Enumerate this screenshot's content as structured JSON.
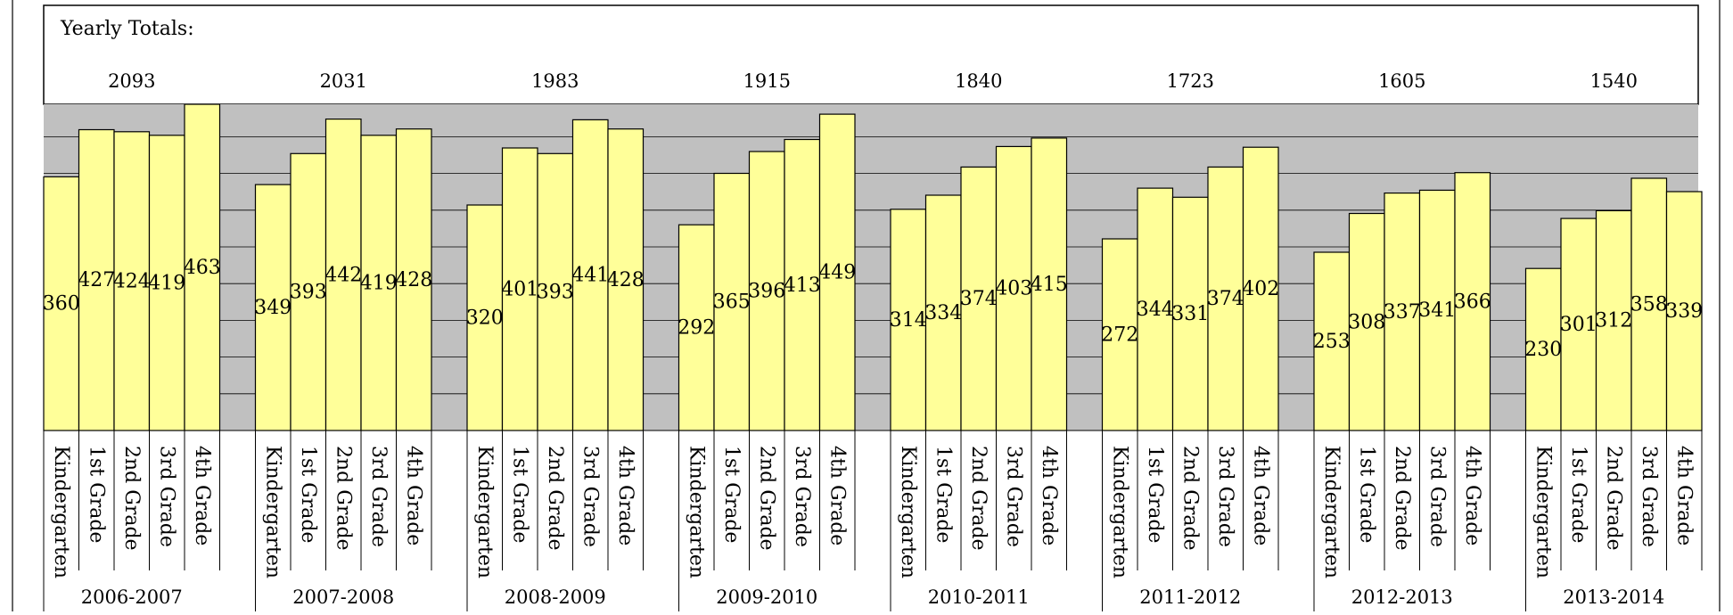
{
  "header": {
    "title": "Yearly Totals:"
  },
  "chart_data": {
    "type": "bar",
    "title": "Yearly Totals:",
    "xlabel": "",
    "ylabel": "",
    "grid": true,
    "ylim": [
      0,
      463
    ],
    "groups": [
      {
        "year": "2006-2007",
        "total": "2093",
        "bars": [
          {
            "label": "Kindergarten",
            "value": 360
          },
          {
            "label": "1st Grade",
            "value": 427
          },
          {
            "label": "2nd Grade",
            "value": 424
          },
          {
            "label": "3rd Grade",
            "value": 419
          },
          {
            "label": "4th Grade",
            "value": 463
          }
        ]
      },
      {
        "year": "2007-2008",
        "total": "2031",
        "bars": [
          {
            "label": "Kindergarten",
            "value": 349
          },
          {
            "label": "1st Grade",
            "value": 393
          },
          {
            "label": "2nd Grade",
            "value": 442
          },
          {
            "label": "3rd Grade",
            "value": 419
          },
          {
            "label": "4th Grade",
            "value": 428
          }
        ]
      },
      {
        "year": "2008-2009",
        "total": "1983",
        "bars": [
          {
            "label": "Kindergarten",
            "value": 320
          },
          {
            "label": "1st Grade",
            "value": 401
          },
          {
            "label": "2nd Grade",
            "value": 393
          },
          {
            "label": "3rd Grade",
            "value": 441
          },
          {
            "label": "4th Grade",
            "value": 428
          }
        ]
      },
      {
        "year": "2009-2010",
        "total": "1915",
        "bars": [
          {
            "label": "Kindergarten",
            "value": 292
          },
          {
            "label": "1st Grade",
            "value": 365
          },
          {
            "label": "2nd Grade",
            "value": 396
          },
          {
            "label": "3rd Grade",
            "value": 413
          },
          {
            "label": "4th Grade",
            "value": 449
          }
        ]
      },
      {
        "year": "2010-2011",
        "total": "1840",
        "bars": [
          {
            "label": "Kindergarten",
            "value": 314
          },
          {
            "label": "1st Grade",
            "value": 334
          },
          {
            "label": "2nd Grade",
            "value": 374
          },
          {
            "label": "3rd Grade",
            "value": 403
          },
          {
            "label": "4th Grade",
            "value": 415
          }
        ]
      },
      {
        "year": "2011-2012",
        "total": "1723",
        "bars": [
          {
            "label": "Kindergarten",
            "value": 272
          },
          {
            "label": "1st Grade",
            "value": 344
          },
          {
            "label": "2nd Grade",
            "value": 331
          },
          {
            "label": "3rd Grade",
            "value": 374
          },
          {
            "label": "4th Grade",
            "value": 402
          }
        ]
      },
      {
        "year": "2012-2013",
        "total": "1605",
        "bars": [
          {
            "label": "Kindergarten",
            "value": 253
          },
          {
            "label": "1st Grade",
            "value": 308
          },
          {
            "label": "2nd Grade",
            "value": 337
          },
          {
            "label": "3rd Grade",
            "value": 341
          },
          {
            "label": "4th Grade",
            "value": 366
          }
        ]
      },
      {
        "year": "2013-2014",
        "total": "1540",
        "bars": [
          {
            "label": "Kindergarten",
            "value": 230
          },
          {
            "label": "1st Grade",
            "value": 301
          },
          {
            "label": "2nd Grade",
            "value": 312
          },
          {
            "label": "3rd Grade",
            "value": 358
          },
          {
            "label": "4th Grade",
            "value": 339
          }
        ]
      }
    ],
    "colors": {
      "bar_fill": "#ffff99",
      "bar_stroke": "#000000",
      "plot_bg": "#c0c0c0",
      "grid": "#000000"
    }
  }
}
